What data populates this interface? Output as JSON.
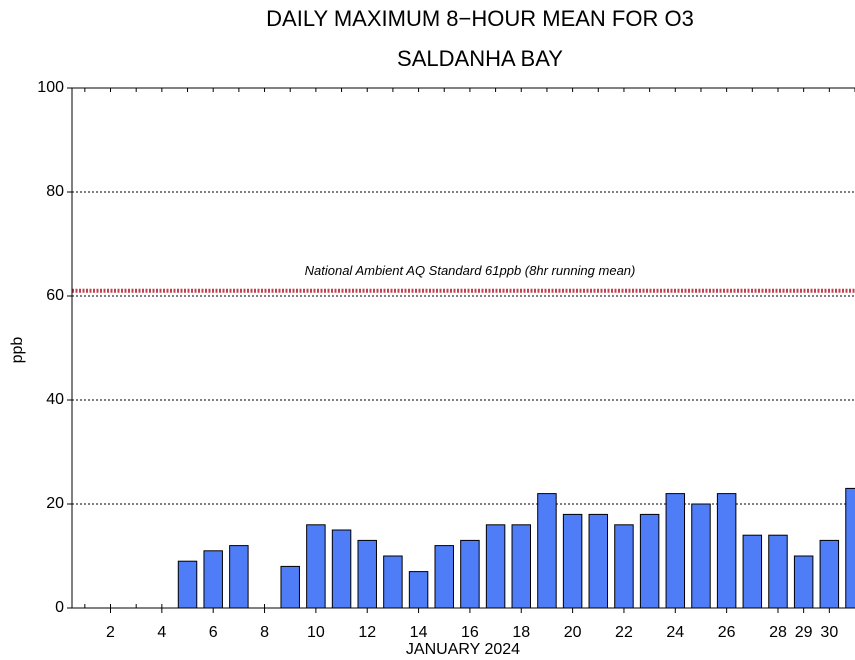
{
  "chart_data": {
    "type": "bar",
    "title": "DAILY MAXIMUM 8−HOUR MEAN FOR O3",
    "subtitle": "SALDANHA BAY",
    "x_label": "JANUARY 2024",
    "y_label": "ppb",
    "x": [
      1,
      2,
      3,
      4,
      5,
      6,
      7,
      8,
      9,
      10,
      11,
      12,
      13,
      14,
      15,
      16,
      17,
      18,
      19,
      20,
      21,
      22,
      23,
      24,
      25,
      26,
      27,
      28,
      29,
      30,
      31
    ],
    "values": [
      null,
      null,
      null,
      null,
      9,
      11,
      12,
      null,
      8,
      16,
      15,
      13,
      10,
      7,
      12,
      13,
      16,
      16,
      22,
      18,
      18,
      16,
      18,
      22,
      20,
      22,
      14,
      14,
      10,
      13,
      23
    ],
    "color": "#4f7cf7",
    "xlim": [
      0.5,
      31
    ],
    "xticks": [
      2,
      4,
      6,
      8,
      10,
      12,
      14,
      16,
      18,
      20,
      22,
      24,
      26,
      28,
      29,
      30
    ],
    "ylim": [
      0,
      100
    ],
    "yticks": [
      0,
      20,
      40,
      60,
      80,
      100
    ],
    "grid": true,
    "standard": {
      "value": 61,
      "label": "National Ambient AQ Standard 61ppb (8hr running mean)",
      "color": "#c0404e"
    }
  }
}
